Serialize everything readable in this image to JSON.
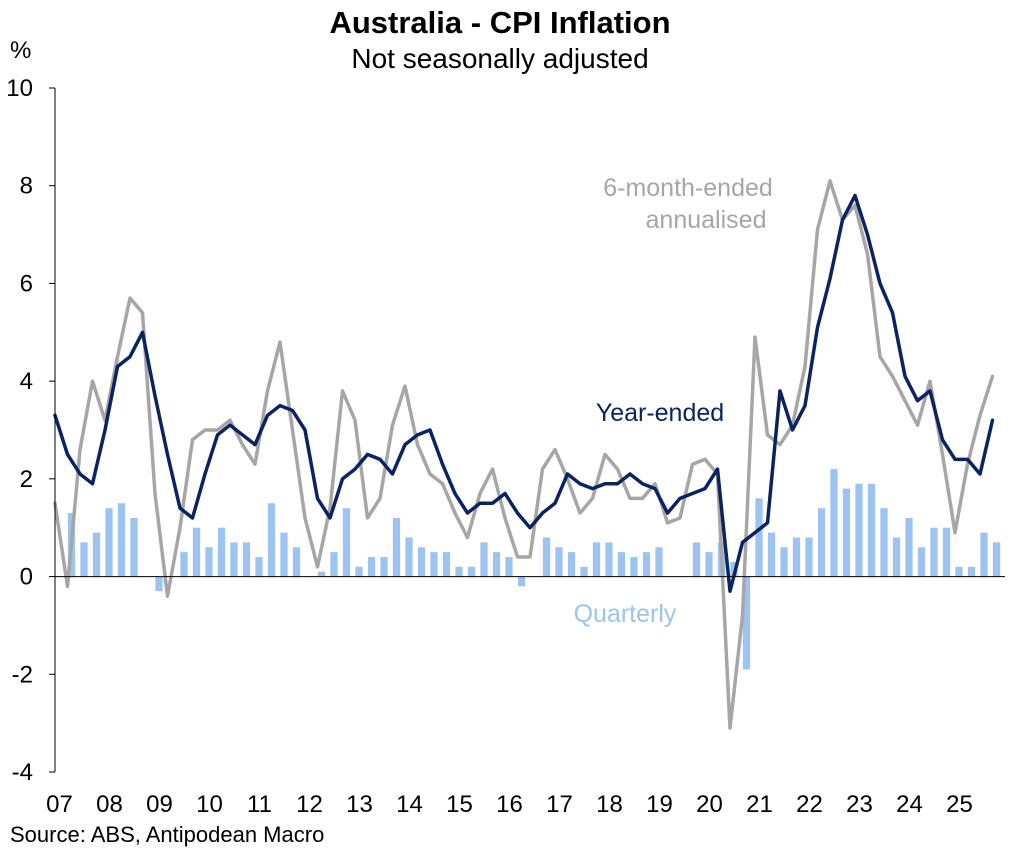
{
  "chart_data": {
    "type": "line",
    "title": "Australia - CPI Inflation",
    "subtitle": "Not seasonally adjusted",
    "ylabel": "%",
    "ylim": [
      -4,
      10
    ],
    "yticks": [
      -4,
      -2,
      0,
      2,
      4,
      6,
      8,
      10
    ],
    "xlim": [
      2007.0,
      2026.0
    ],
    "xtick_labels": [
      "07",
      "08",
      "09",
      "10",
      "11",
      "12",
      "13",
      "14",
      "15",
      "16",
      "17",
      "18",
      "19",
      "20",
      "21",
      "22",
      "23",
      "24",
      "25"
    ],
    "source": "Source: ABS, Antipodean Macro",
    "colors": {
      "year_ended": "#0B2461",
      "six_month": "#A6A6A6",
      "quarterly": "#9DC3F0"
    },
    "annotations": {
      "six_month_line1": "6-month-ended",
      "six_month_line2": "annualised",
      "year_ended": "Year-ended",
      "quarterly": "Quarterly"
    },
    "series": [
      {
        "name": "Year-ended",
        "kind": "line",
        "x": [
          2007.0,
          2007.25,
          2007.5,
          2007.75,
          2008.0,
          2008.25,
          2008.5,
          2008.75,
          2009.0,
          2009.25,
          2009.5,
          2009.75,
          2010.0,
          2010.25,
          2010.5,
          2010.75,
          2011.0,
          2011.25,
          2011.5,
          2011.75,
          2012.0,
          2012.25,
          2012.5,
          2012.75,
          2013.0,
          2013.25,
          2013.5,
          2013.75,
          2014.0,
          2014.25,
          2014.5,
          2014.75,
          2015.0,
          2015.25,
          2015.5,
          2015.75,
          2016.0,
          2016.25,
          2016.5,
          2016.75,
          2017.0,
          2017.25,
          2017.5,
          2017.75,
          2018.0,
          2018.25,
          2018.5,
          2018.75,
          2019.0,
          2019.25,
          2019.5,
          2019.75,
          2020.0,
          2020.25,
          2020.5,
          2020.75,
          2021.0,
          2021.25,
          2021.5,
          2021.75,
          2022.0,
          2022.25,
          2022.5,
          2022.75,
          2023.0,
          2023.25,
          2023.5,
          2023.75,
          2024.0,
          2024.25,
          2024.5,
          2024.75,
          2025.0,
          2025.25,
          2025.5,
          2025.75
        ],
        "values": [
          3.3,
          2.5,
          2.1,
          1.9,
          3.0,
          4.3,
          4.5,
          5.0,
          3.7,
          2.5,
          1.4,
          1.2,
          2.1,
          2.9,
          3.1,
          2.9,
          2.7,
          3.3,
          3.5,
          3.4,
          3.0,
          1.6,
          1.2,
          2.0,
          2.2,
          2.5,
          2.4,
          2.1,
          2.7,
          2.9,
          3.0,
          2.3,
          1.7,
          1.3,
          1.5,
          1.5,
          1.7,
          1.3,
          1.0,
          1.3,
          1.5,
          2.1,
          1.9,
          1.8,
          1.9,
          1.9,
          2.1,
          1.9,
          1.8,
          1.3,
          1.6,
          1.7,
          1.8,
          2.2,
          -0.3,
          0.7,
          0.9,
          1.1,
          3.8,
          3.0,
          3.5,
          5.1,
          6.1,
          7.3,
          7.8,
          7.0,
          6.0,
          5.4,
          4.1,
          3.6,
          3.8,
          2.8,
          2.4,
          2.4,
          2.1,
          3.2
        ]
      },
      {
        "name": "6-month-ended annualised",
        "kind": "line",
        "x": [
          2007.0,
          2007.25,
          2007.5,
          2007.75,
          2008.0,
          2008.25,
          2008.5,
          2008.75,
          2009.0,
          2009.25,
          2009.5,
          2009.75,
          2010.0,
          2010.25,
          2010.5,
          2010.75,
          2011.0,
          2011.25,
          2011.5,
          2011.75,
          2012.0,
          2012.25,
          2012.5,
          2012.75,
          2013.0,
          2013.25,
          2013.5,
          2013.75,
          2014.0,
          2014.25,
          2014.5,
          2014.75,
          2015.0,
          2015.25,
          2015.5,
          2015.75,
          2016.0,
          2016.25,
          2016.5,
          2016.75,
          2017.0,
          2017.25,
          2017.5,
          2017.75,
          2018.0,
          2018.25,
          2018.5,
          2018.75,
          2019.0,
          2019.25,
          2019.5,
          2019.75,
          2020.0,
          2020.25,
          2020.5,
          2020.75,
          2021.0,
          2021.25,
          2021.5,
          2021.75,
          2022.0,
          2022.25,
          2022.5,
          2022.75,
          2023.0,
          2023.25,
          2023.5,
          2023.75,
          2024.0,
          2024.25,
          2024.5,
          2024.75,
          2025.0,
          2025.25,
          2025.5,
          2025.75
        ],
        "values": [
          1.5,
          -0.2,
          2.6,
          4.0,
          3.2,
          4.5,
          5.7,
          5.4,
          1.7,
          -0.4,
          1.0,
          2.8,
          3.0,
          3.0,
          3.2,
          2.7,
          2.3,
          3.8,
          4.8,
          3.0,
          1.2,
          0.2,
          1.4,
          3.8,
          3.2,
          1.2,
          1.6,
          3.1,
          3.9,
          2.7,
          2.1,
          1.9,
          1.3,
          0.8,
          1.7,
          2.2,
          1.2,
          0.4,
          0.4,
          2.2,
          2.6,
          2.0,
          1.3,
          1.6,
          2.5,
          2.2,
          1.6,
          1.6,
          1.9,
          1.1,
          1.2,
          2.3,
          2.4,
          2.1,
          -3.1,
          -0.8,
          4.9,
          2.9,
          2.7,
          3.1,
          4.3,
          7.1,
          8.1,
          7.3,
          7.6,
          6.6,
          4.5,
          4.1,
          3.6,
          3.1,
          4.0,
          2.5,
          0.9,
          2.3,
          3.3,
          4.1
        ]
      },
      {
        "name": "Quarterly",
        "kind": "bar",
        "x": [
          2007.0,
          2007.25,
          2007.5,
          2007.75,
          2008.0,
          2008.25,
          2008.5,
          2008.75,
          2009.0,
          2009.25,
          2009.5,
          2009.75,
          2010.0,
          2010.25,
          2010.5,
          2010.75,
          2011.0,
          2011.25,
          2011.5,
          2011.75,
          2012.0,
          2012.25,
          2012.5,
          2012.75,
          2013.0,
          2013.25,
          2013.5,
          2013.75,
          2014.0,
          2014.25,
          2014.5,
          2014.75,
          2015.0,
          2015.25,
          2015.5,
          2015.75,
          2016.0,
          2016.25,
          2016.5,
          2016.75,
          2017.0,
          2017.25,
          2017.5,
          2017.75,
          2018.0,
          2018.25,
          2018.5,
          2018.75,
          2019.0,
          2019.25,
          2019.5,
          2019.75,
          2020.0,
          2020.25,
          2020.5,
          2020.75,
          2021.0,
          2021.25,
          2021.5,
          2021.75,
          2022.0,
          2022.25,
          2022.5,
          2022.75,
          2023.0,
          2023.25,
          2023.5,
          2023.75,
          2024.0,
          2024.25,
          2024.5,
          2024.75,
          2025.0,
          2025.25,
          2025.5,
          2025.75
        ],
        "values": [
          0.0,
          1.3,
          0.7,
          0.9,
          1.4,
          1.5,
          1.2,
          0.0,
          -0.3,
          0.0,
          0.5,
          1.0,
          0.6,
          1.0,
          0.7,
          0.7,
          0.4,
          1.5,
          0.9,
          0.6,
          0.0,
          0.1,
          0.5,
          1.4,
          0.2,
          0.4,
          0.4,
          1.2,
          0.8,
          0.6,
          0.5,
          0.5,
          0.2,
          0.2,
          0.7,
          0.5,
          0.4,
          -0.2,
          0.0,
          0.8,
          0.6,
          0.5,
          0.2,
          0.7,
          0.7,
          0.5,
          0.4,
          0.5,
          0.6,
          0.0,
          0.0,
          0.7,
          0.5,
          0.7,
          0.3,
          -1.9,
          1.6,
          0.9,
          0.6,
          0.8,
          0.8,
          1.4,
          2.2,
          1.8,
          1.9,
          1.9,
          1.4,
          0.8,
          1.2,
          0.6,
          1.0,
          1.0,
          0.2,
          0.2,
          0.9,
          0.7
        ]
      }
    ]
  }
}
